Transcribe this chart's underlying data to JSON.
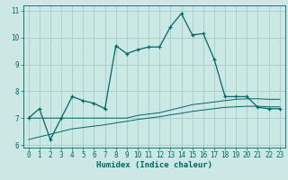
{
  "xlabel": "Humidex (Indice chaleur)",
  "background_color": "#cce8e4",
  "grid_color": "#aacfcb",
  "line_color": "#006666",
  "xlim": [
    -0.5,
    23.5
  ],
  "ylim": [
    5.9,
    11.2
  ],
  "yticks": [
    6,
    7,
    8,
    9,
    10,
    11
  ],
  "xticks": [
    0,
    1,
    2,
    3,
    4,
    5,
    6,
    7,
    8,
    9,
    10,
    11,
    12,
    13,
    14,
    15,
    16,
    17,
    18,
    19,
    20,
    21,
    22,
    23
  ],
  "series1_x": [
    0,
    1,
    2,
    3,
    4,
    5,
    6,
    7,
    8,
    9,
    10,
    11,
    12,
    13,
    14,
    15,
    16,
    17,
    18,
    19,
    20,
    21,
    22,
    23
  ],
  "series1_y": [
    7.0,
    7.35,
    6.2,
    7.0,
    7.8,
    7.65,
    7.55,
    7.35,
    9.7,
    9.4,
    9.55,
    9.65,
    9.65,
    10.4,
    10.9,
    10.1,
    10.15,
    9.2,
    7.8,
    7.8,
    7.8,
    7.4,
    7.35,
    7.35
  ],
  "series2_x": [
    0,
    1,
    2,
    3,
    4,
    5,
    6,
    7,
    8,
    9,
    10,
    11,
    12,
    13,
    14,
    15,
    16,
    17,
    18,
    19,
    20,
    21,
    22,
    23
  ],
  "series2_y": [
    7.0,
    7.0,
    7.0,
    7.0,
    7.0,
    7.0,
    7.0,
    7.0,
    7.0,
    7.0,
    7.1,
    7.15,
    7.2,
    7.3,
    7.4,
    7.5,
    7.55,
    7.6,
    7.65,
    7.7,
    7.72,
    7.72,
    7.7,
    7.7
  ],
  "series3_x": [
    0,
    1,
    2,
    3,
    4,
    5,
    6,
    7,
    8,
    9,
    10,
    11,
    12,
    13,
    14,
    15,
    16,
    17,
    18,
    19,
    20,
    21,
    22,
    23
  ],
  "series3_y": [
    6.2,
    6.3,
    6.4,
    6.5,
    6.6,
    6.65,
    6.7,
    6.75,
    6.82,
    6.88,
    6.95,
    7.0,
    7.05,
    7.12,
    7.18,
    7.25,
    7.3,
    7.35,
    7.4,
    7.42,
    7.44,
    7.44,
    7.42,
    7.42
  ]
}
